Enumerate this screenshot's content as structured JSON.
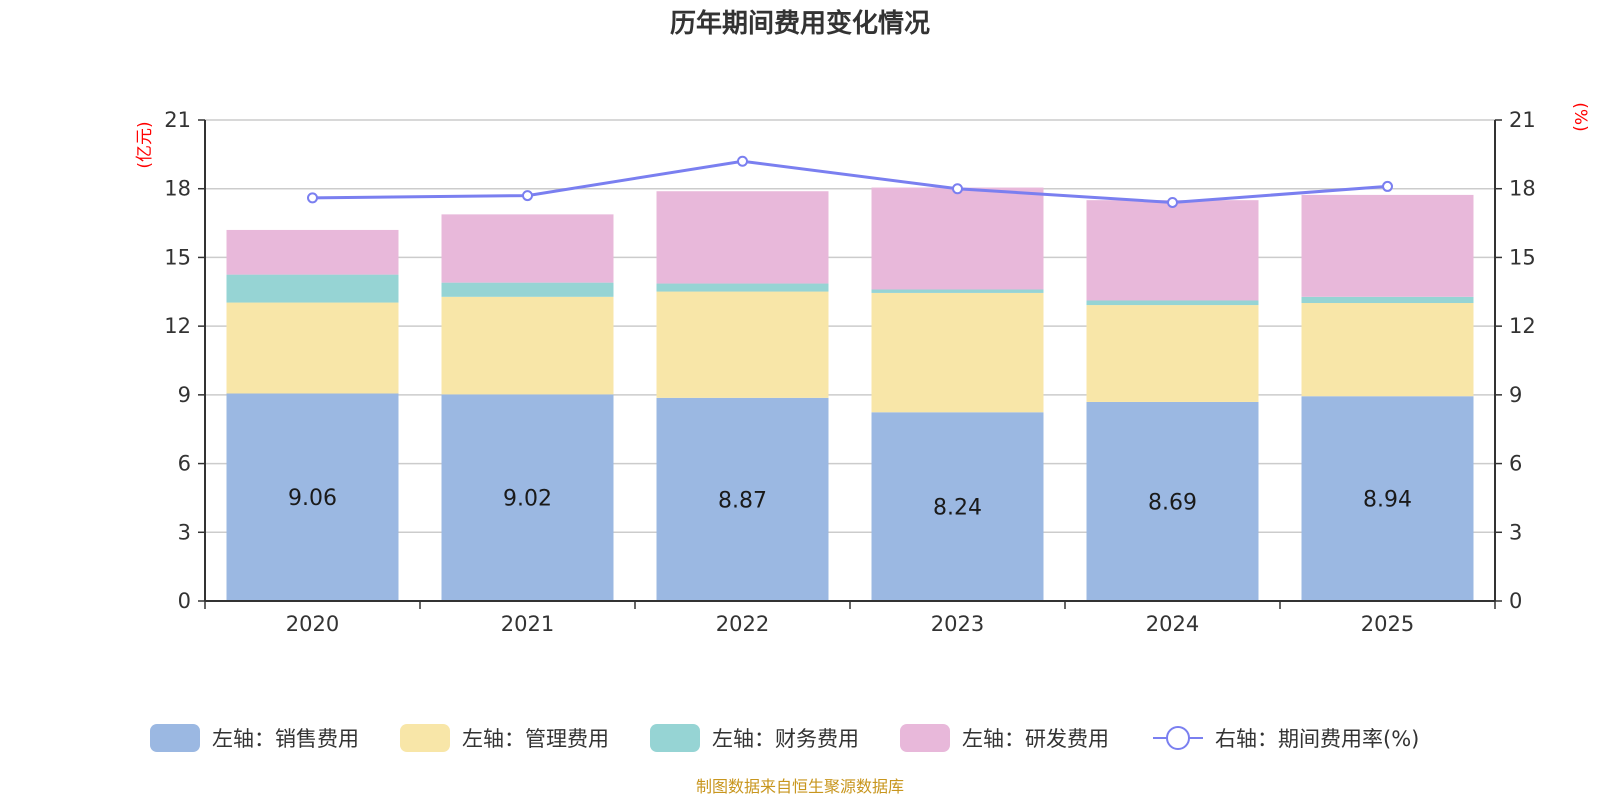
{
  "chart_data": {
    "type": "bar",
    "title": "历年期间费用变化情况",
    "categories": [
      "2020",
      "2021",
      "2022",
      "2023",
      "2024",
      "2025"
    ],
    "left_axis": {
      "unit_label": "(亿元)",
      "ylim": [
        0,
        21
      ],
      "ticks": [
        0,
        3,
        6,
        9,
        12,
        15,
        18,
        21
      ]
    },
    "right_axis": {
      "unit_label": "(%)",
      "ylim": [
        0,
        21
      ],
      "ticks": [
        0,
        3,
        6,
        9,
        12,
        15,
        18,
        21
      ]
    },
    "series": [
      {
        "name": "左轴：销售费用",
        "kind": "stacked-bar",
        "axis": "left",
        "color": "#9bb8e2",
        "values": [
          9.06,
          9.02,
          8.87,
          8.24,
          8.69,
          8.94
        ],
        "show_labels": true
      },
      {
        "name": "左轴：管理费用",
        "kind": "stacked-bar",
        "axis": "left",
        "color": "#f8e6a8",
        "values": [
          3.97,
          4.26,
          4.64,
          5.21,
          4.23,
          4.07
        ]
      },
      {
        "name": "左轴：财务费用",
        "kind": "stacked-bar",
        "axis": "left",
        "color": "#96d4d4",
        "values": [
          1.22,
          0.62,
          0.35,
          0.15,
          0.2,
          0.27
        ]
      },
      {
        "name": "左轴：研发费用",
        "kind": "stacked-bar",
        "axis": "left",
        "color": "#e8b8da",
        "values": [
          1.95,
          2.98,
          4.03,
          4.45,
          4.38,
          4.45
        ]
      },
      {
        "name": "右轴：期间费用率(%)",
        "kind": "line",
        "axis": "right",
        "color": "#7a7ff0",
        "values": [
          17.6,
          17.7,
          19.2,
          18.0,
          17.4,
          18.1
        ]
      }
    ],
    "grid": true,
    "legend_position": "bottom"
  },
  "source_note": "制图数据来自恒生聚源数据库",
  "colors": {
    "axis": "#333333",
    "grid": "#cccccc",
    "unit_label": "#ff0000",
    "source": "#c8961e"
  }
}
